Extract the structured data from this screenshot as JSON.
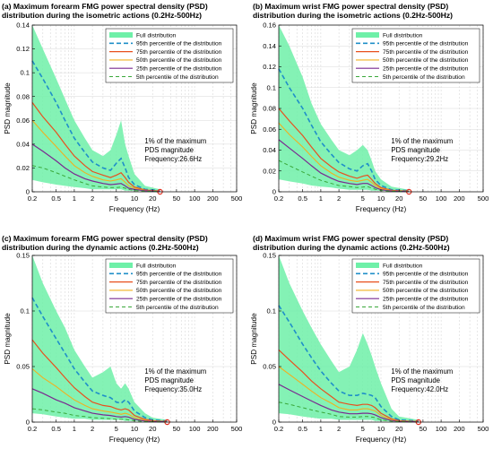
{
  "figure": {
    "background": "#ffffff",
    "colors": {
      "full": "#6ef0a8",
      "p95": "#1f8fc8",
      "p75": "#e8501e",
      "p50": "#f0b020",
      "p25": "#7a2a90",
      "p5": "#3aa83a",
      "marker": "#e03020"
    }
  },
  "chart_data": [
    {
      "type": "area",
      "title_line1": "(a) Maximum forearm FMG power spectral density (PSD)",
      "title_line2": "distribution during the isometric actions (0.2Hz-500Hz)",
      "xlabel": "Frequency (Hz)",
      "ylabel": "PSD magnitude",
      "xscale": "log",
      "xlim": [
        0.2,
        500
      ],
      "ylim": [
        0,
        0.14
      ],
      "xticks": [
        "0.2",
        "0.5",
        "1",
        "2",
        "5",
        "10",
        "20",
        "50",
        "100",
        "200",
        "500"
      ],
      "xtick_values": [
        0.2,
        0.5,
        1,
        2,
        5,
        10,
        20,
        50,
        100,
        200,
        500
      ],
      "yticks": [
        "0",
        "0.02",
        "0.04",
        "0.06",
        "0.08",
        "0.1",
        "0.12",
        "0.14"
      ],
      "ytick_values": [
        0,
        0.02,
        0.04,
        0.06,
        0.08,
        0.1,
        0.12,
        0.14
      ],
      "grid": true,
      "legend_position": "top-right",
      "legend": [
        "Full distribution",
        "95th percentile of the distribution",
        "75th percentile of the distribution",
        "50th percentile of the distribution",
        "25th percentile of the distribution",
        "5th percentile of the distribution"
      ],
      "annotation": [
        "1% of the maximum",
        "PDS magnitude",
        "Frequency:26.6Hz"
      ],
      "marker_x": 26.6,
      "series": {
        "x": [
          0.2,
          0.3,
          0.5,
          0.7,
          1,
          1.5,
          2,
          3,
          4,
          5,
          6,
          7,
          8,
          10,
          15,
          26.6
        ],
        "full_upper": [
          0.14,
          0.12,
          0.095,
          0.078,
          0.06,
          0.045,
          0.035,
          0.03,
          0.035,
          0.048,
          0.06,
          0.04,
          0.03,
          0.015,
          0.005,
          0.002
        ],
        "full_lower": [
          0.01,
          0.008,
          0.006,
          0.005,
          0.004,
          0.003,
          0.002,
          0.002,
          0.002,
          0.002,
          0.002,
          0.001,
          0.001,
          0.001,
          0.0005,
          0.0003
        ],
        "p95": [
          0.11,
          0.095,
          0.075,
          0.06,
          0.045,
          0.033,
          0.025,
          0.02,
          0.018,
          0.024,
          0.028,
          0.02,
          0.012,
          0.006,
          0.002,
          0.001
        ],
        "p75": [
          0.075,
          0.063,
          0.05,
          0.04,
          0.03,
          0.022,
          0.017,
          0.014,
          0.012,
          0.014,
          0.016,
          0.012,
          0.008,
          0.004,
          0.0015,
          0.0006
        ],
        "p50": [
          0.06,
          0.05,
          0.038,
          0.03,
          0.022,
          0.016,
          0.013,
          0.01,
          0.009,
          0.01,
          0.011,
          0.008,
          0.005,
          0.003,
          0.001,
          0.0004
        ],
        "p25": [
          0.04,
          0.034,
          0.026,
          0.02,
          0.015,
          0.011,
          0.009,
          0.007,
          0.006,
          0.0065,
          0.007,
          0.005,
          0.003,
          0.002,
          0.0008,
          0.0003
        ],
        "p5": [
          0.022,
          0.02,
          0.016,
          0.013,
          0.01,
          0.007,
          0.005,
          0.004,
          0.0035,
          0.0035,
          0.004,
          0.003,
          0.002,
          0.001,
          0.0005,
          0.0002
        ]
      }
    },
    {
      "type": "area",
      "title_line1": "(b) Maximum wrist FMG power spectral density (PSD)",
      "title_line2": "distribution during the isometric actions (0.2Hz-500Hz)",
      "xlabel": "Frequency (Hz)",
      "ylabel": "PSD magnitude",
      "xscale": "log",
      "xlim": [
        0.2,
        500
      ],
      "ylim": [
        0,
        0.16
      ],
      "xticks": [
        "0.2",
        "0.5",
        "1",
        "2",
        "5",
        "10",
        "20",
        "50",
        "100",
        "200",
        "500"
      ],
      "xtick_values": [
        0.2,
        0.5,
        1,
        2,
        5,
        10,
        20,
        50,
        100,
        200,
        500
      ],
      "yticks": [
        "0",
        "0.02",
        "0.04",
        "0.06",
        "0.08",
        "0.1",
        "0.12",
        "0.14",
        "0.16"
      ],
      "ytick_values": [
        0,
        0.02,
        0.04,
        0.06,
        0.08,
        0.1,
        0.12,
        0.14,
        0.16
      ],
      "grid": true,
      "legend_position": "top-right",
      "legend": [
        "Full distribution",
        "95th percentile of the distribution",
        "75th percentile of the distribution",
        "50th percentile of the distribution",
        "25th percentile of the distribution",
        "5th percentile of the distribution"
      ],
      "annotation": [
        "1% of the maximum",
        "PDS magnitude",
        "Frequency:29.2Hz"
      ],
      "marker_x": 29.2,
      "series": {
        "x": [
          0.2,
          0.3,
          0.5,
          0.7,
          1,
          1.5,
          2,
          3,
          4,
          5,
          6,
          7,
          8,
          10,
          15,
          29.2
        ],
        "full_upper": [
          0.16,
          0.14,
          0.11,
          0.085,
          0.065,
          0.05,
          0.04,
          0.035,
          0.04,
          0.045,
          0.04,
          0.03,
          0.02,
          0.012,
          0.005,
          0.002
        ],
        "full_lower": [
          0.012,
          0.01,
          0.008,
          0.006,
          0.005,
          0.004,
          0.003,
          0.002,
          0.002,
          0.002,
          0.002,
          0.001,
          0.001,
          0.001,
          0.0005,
          0.0003
        ],
        "p95": [
          0.118,
          0.1,
          0.08,
          0.064,
          0.048,
          0.036,
          0.028,
          0.022,
          0.02,
          0.025,
          0.027,
          0.02,
          0.012,
          0.006,
          0.002,
          0.001
        ],
        "p75": [
          0.08,
          0.068,
          0.054,
          0.043,
          0.032,
          0.024,
          0.019,
          0.015,
          0.013,
          0.015,
          0.016,
          0.012,
          0.008,
          0.004,
          0.0015,
          0.0006
        ],
        "p50": [
          0.066,
          0.055,
          0.043,
          0.034,
          0.025,
          0.018,
          0.014,
          0.011,
          0.01,
          0.011,
          0.012,
          0.009,
          0.006,
          0.003,
          0.001,
          0.0004
        ],
        "p25": [
          0.05,
          0.042,
          0.032,
          0.025,
          0.018,
          0.013,
          0.01,
          0.008,
          0.007,
          0.008,
          0.008,
          0.006,
          0.004,
          0.002,
          0.0008,
          0.0003
        ],
        "p5": [
          0.03,
          0.025,
          0.019,
          0.015,
          0.011,
          0.008,
          0.006,
          0.005,
          0.004,
          0.0045,
          0.005,
          0.0035,
          0.0025,
          0.0012,
          0.0005,
          0.0002
        ]
      }
    },
    {
      "type": "area",
      "title_line1": "(c) Maximum forearm FMG power spectral density (PSD)",
      "title_line2": "distribution during the dynamic actions (0.2Hz-500Hz)",
      "xlabel": "Frequency (Hz)",
      "ylabel": "PSD magnitude",
      "xscale": "log",
      "xlim": [
        0.2,
        500
      ],
      "ylim": [
        0,
        0.15
      ],
      "xticks": [
        "0.2",
        "0.5",
        "1",
        "2",
        "5",
        "10",
        "20",
        "50",
        "100",
        "200",
        "500"
      ],
      "xtick_values": [
        0.2,
        0.5,
        1,
        2,
        5,
        10,
        20,
        50,
        100,
        200,
        500
      ],
      "yticks": [
        "0",
        "0.05",
        "0.1",
        "0.15"
      ],
      "ytick_values": [
        0,
        0.05,
        0.1,
        0.15
      ],
      "grid": true,
      "legend_position": "top-right",
      "legend": [
        "Full distribution",
        "95th percentile of the distribution",
        "75th percentile of the distribution",
        "50th percentile of the distribution",
        "25th percentile of the distribution",
        "5th percentile of the distribution"
      ],
      "annotation": [
        "1% of the maximum",
        "PDS magnitude",
        "Frequency:35.0Hz"
      ],
      "marker_x": 35.0,
      "series": {
        "x": [
          0.2,
          0.3,
          0.5,
          0.7,
          1,
          1.5,
          2,
          3,
          4,
          5,
          6,
          7,
          8,
          10,
          15,
          20,
          35
        ],
        "full_upper": [
          0.15,
          0.125,
          0.1,
          0.085,
          0.065,
          0.05,
          0.04,
          0.045,
          0.05,
          0.035,
          0.03,
          0.035,
          0.03,
          0.018,
          0.008,
          0.004,
          0.002
        ],
        "full_lower": [
          0.008,
          0.007,
          0.005,
          0.004,
          0.003,
          0.003,
          0.002,
          0.002,
          0.002,
          0.002,
          0.002,
          0.001,
          0.001,
          0.001,
          0.0005,
          0.0004,
          0.0003
        ],
        "p95": [
          0.112,
          0.095,
          0.075,
          0.062,
          0.048,
          0.036,
          0.028,
          0.024,
          0.022,
          0.018,
          0.017,
          0.02,
          0.018,
          0.01,
          0.004,
          0.002,
          0.001
        ],
        "p75": [
          0.074,
          0.062,
          0.049,
          0.04,
          0.031,
          0.023,
          0.018,
          0.015,
          0.014,
          0.012,
          0.011,
          0.012,
          0.011,
          0.006,
          0.0025,
          0.0012,
          0.0006
        ],
        "p50": [
          0.048,
          0.04,
          0.032,
          0.026,
          0.02,
          0.015,
          0.012,
          0.01,
          0.009,
          0.008,
          0.007,
          0.008,
          0.007,
          0.004,
          0.0016,
          0.0008,
          0.0004
        ],
        "p25": [
          0.03,
          0.026,
          0.02,
          0.017,
          0.013,
          0.01,
          0.008,
          0.0065,
          0.006,
          0.005,
          0.0045,
          0.005,
          0.0045,
          0.0025,
          0.001,
          0.0005,
          0.0003
        ],
        "p5": [
          0.012,
          0.011,
          0.009,
          0.008,
          0.006,
          0.005,
          0.004,
          0.0035,
          0.003,
          0.0025,
          0.0025,
          0.0025,
          0.002,
          0.0012,
          0.0005,
          0.0003,
          0.0002
        ]
      }
    },
    {
      "type": "area",
      "title_line1": "(d) Maximum wrist FMG power spectral density (PSD)",
      "title_line2": "distribution during the dynamic actions (0.2Hz-500Hz)",
      "xlabel": "Frequency (Hz)",
      "ylabel": "PSD magnitude",
      "xscale": "log",
      "xlim": [
        0.2,
        500
      ],
      "ylim": [
        0,
        0.15
      ],
      "xticks": [
        "0.2",
        "0.5",
        "1",
        "2",
        "5",
        "10",
        "20",
        "50",
        "100",
        "200",
        "500"
      ],
      "xtick_values": [
        0.2,
        0.5,
        1,
        2,
        5,
        10,
        20,
        50,
        100,
        200,
        500
      ],
      "yticks": [
        "0",
        "0.05",
        "0.1",
        "0.15"
      ],
      "ytick_values": [
        0,
        0.05,
        0.1,
        0.15
      ],
      "grid": true,
      "legend_position": "top-right",
      "legend": [
        "Full distribution",
        "95th percentile of the distribution",
        "75th percentile of the distribution",
        "50th percentile of the distribution",
        "25th percentile of the distribution",
        "5th percentile of the distribution"
      ],
      "annotation": [
        "1% of the maximum",
        "PDS magnitude",
        "Frequency:42.0Hz"
      ],
      "marker_x": 42.0,
      "series": {
        "x": [
          0.2,
          0.3,
          0.5,
          0.7,
          1,
          1.5,
          2,
          3,
          4,
          5,
          6,
          7,
          8,
          10,
          15,
          20,
          42
        ],
        "full_upper": [
          0.15,
          0.125,
          0.1,
          0.085,
          0.07,
          0.055,
          0.045,
          0.05,
          0.065,
          0.08,
          0.07,
          0.06,
          0.05,
          0.035,
          0.012,
          0.005,
          0.002
        ],
        "full_lower": [
          0.008,
          0.007,
          0.005,
          0.004,
          0.003,
          0.003,
          0.002,
          0.002,
          0.002,
          0.002,
          0.002,
          0.002,
          0.001,
          0.001,
          0.0005,
          0.0004,
          0.0003
        ],
        "p95": [
          0.105,
          0.09,
          0.07,
          0.058,
          0.046,
          0.035,
          0.028,
          0.024,
          0.024,
          0.026,
          0.025,
          0.024,
          0.022,
          0.014,
          0.005,
          0.002,
          0.001
        ],
        "p75": [
          0.065,
          0.056,
          0.045,
          0.037,
          0.03,
          0.023,
          0.018,
          0.016,
          0.015,
          0.016,
          0.016,
          0.015,
          0.013,
          0.008,
          0.003,
          0.0012,
          0.0006
        ],
        "p50": [
          0.05,
          0.043,
          0.034,
          0.028,
          0.022,
          0.017,
          0.013,
          0.011,
          0.011,
          0.012,
          0.012,
          0.011,
          0.01,
          0.006,
          0.002,
          0.0008,
          0.0004
        ],
        "p25": [
          0.034,
          0.029,
          0.023,
          0.019,
          0.015,
          0.011,
          0.009,
          0.0075,
          0.0075,
          0.008,
          0.008,
          0.0075,
          0.0065,
          0.004,
          0.0014,
          0.0006,
          0.0003
        ],
        "p5": [
          0.018,
          0.016,
          0.013,
          0.011,
          0.009,
          0.007,
          0.005,
          0.0045,
          0.0045,
          0.005,
          0.005,
          0.0045,
          0.004,
          0.002,
          0.0008,
          0.0004,
          0.0002
        ]
      }
    }
  ]
}
